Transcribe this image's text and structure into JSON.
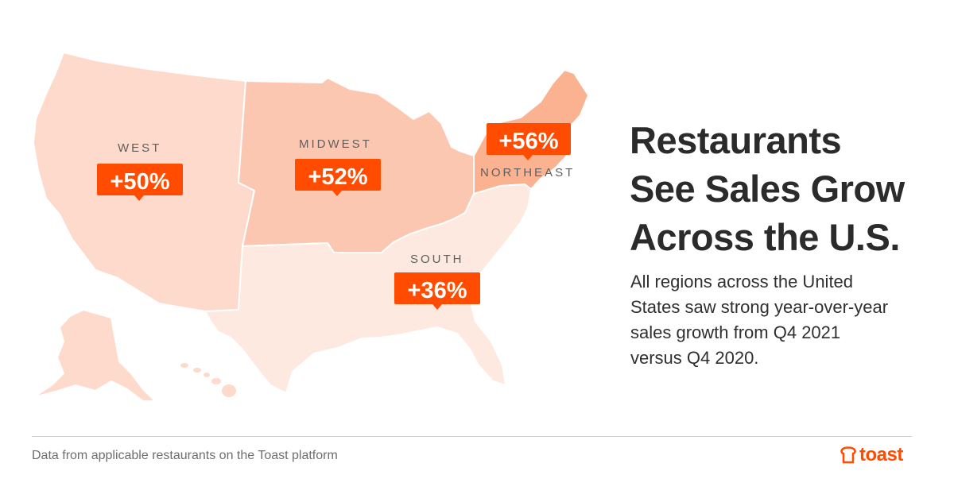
{
  "map": {
    "regions": [
      {
        "id": "west",
        "name": "WEST",
        "growth": "+50%",
        "color": "#fddacb"
      },
      {
        "id": "midwest",
        "name": "MIDWEST",
        "growth": "+52%",
        "color": "#fcc7b1"
      },
      {
        "id": "northeast",
        "name": "NORTHEAST",
        "growth": "+56%",
        "color": "#fbb291"
      },
      {
        "id": "south",
        "name": "SOUTH",
        "growth": "+36%",
        "color": "#fde9e0"
      }
    ],
    "badge_color": "#ff4c00"
  },
  "headline": {
    "line1": "Restaurants",
    "line2": "See Sales Grow",
    "line3": "Across the U.S."
  },
  "body": {
    "line1": "All regions across the United",
    "line2": "States saw strong year-over-year",
    "line3": "sales growth from Q4 2021",
    "line4": "versus Q4 2020."
  },
  "footer": {
    "note": "Data from applicable restaurants on the Toast platform",
    "brand": "toast"
  }
}
